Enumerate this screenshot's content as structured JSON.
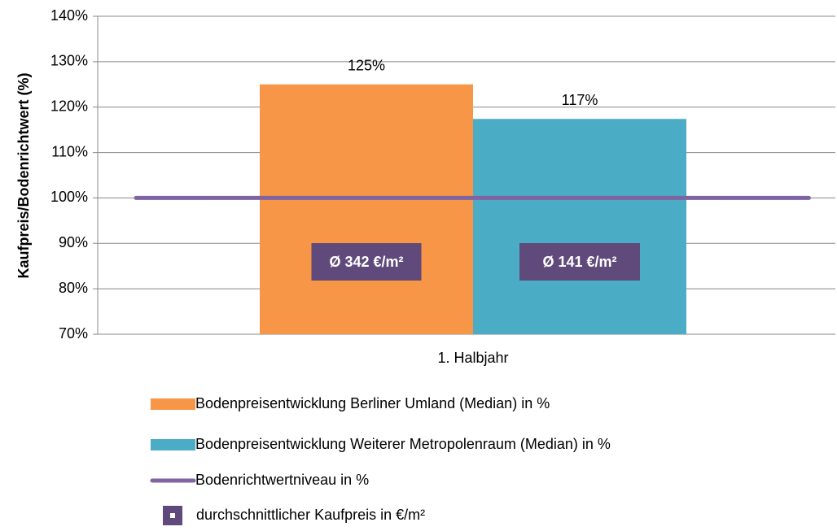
{
  "chart_data": {
    "type": "bar",
    "y_label": "Kaufpreis/Bodenrichtwert (%)",
    "categories": [
      "1. Halbjahr"
    ],
    "series": [
      {
        "name": "Bodenpreisentwicklung Berliner Umland (Median) in %",
        "color": "#f79646",
        "values": [
          125
        ],
        "value_labels": [
          "125%"
        ]
      },
      {
        "name": "Bodenpreisentwicklung Weiterer Metropolenraum (Median) in %",
        "color": "#4bacc6",
        "values": [
          117.4
        ],
        "value_labels": [
          "117%"
        ]
      },
      {
        "name": "Bodenrichtwertniveau in %",
        "color": "#8064a2",
        "type": "line",
        "values": [
          100
        ]
      },
      {
        "name": "durchschnittlicher Kaufpreis in €/m²",
        "color": "#604a7b",
        "type": "marker"
      }
    ],
    "annotations": [
      "Ø 342 €/m²",
      "Ø 141 €/m²"
    ],
    "ylim": [
      70,
      140
    ],
    "yticks": [
      {
        "value": 70,
        "label": "70%"
      },
      {
        "value": 80,
        "label": "80%"
      },
      {
        "value": 90,
        "label": "90%"
      },
      {
        "value": 100,
        "label": "100%"
      },
      {
        "value": 110,
        "label": "110%"
      },
      {
        "value": 120,
        "label": "120%"
      },
      {
        "value": 130,
        "label": "130%"
      },
      {
        "value": 140,
        "label": "140%"
      }
    ],
    "grid": true
  }
}
